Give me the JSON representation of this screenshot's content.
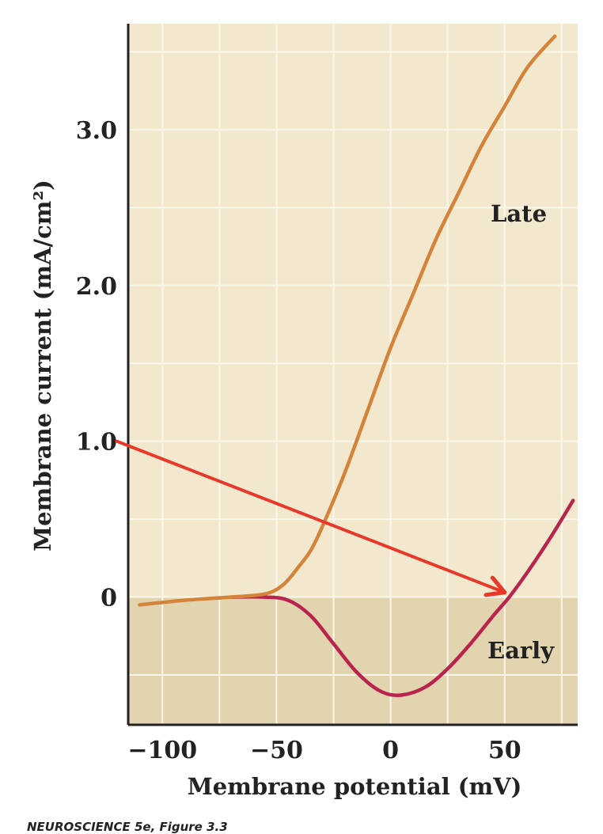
{
  "chart_data": {
    "type": "line",
    "xlabel": "Membrane potential (mV)",
    "ylabel": "Membrane current (mA/cm²)",
    "xlim": [
      -115,
      82
    ],
    "ylim": [
      -0.82,
      3.68
    ],
    "x_ticks": [
      -100,
      -50,
      0,
      50
    ],
    "x_tick_labels": [
      "−100",
      "−50",
      "0",
      "50"
    ],
    "y_ticks": [
      0,
      1.0,
      2.0,
      3.0
    ],
    "y_tick_labels": [
      "0",
      "1.0",
      "2.0",
      "3.0"
    ],
    "grid": true,
    "series": [
      {
        "name": "Late",
        "color": "#d4843a",
        "points": [
          [
            -110,
            -0.05
          ],
          [
            -90,
            -0.02
          ],
          [
            -70,
            0.0
          ],
          [
            -55,
            0.02
          ],
          [
            -47,
            0.08
          ],
          [
            -40,
            0.2
          ],
          [
            -35,
            0.3
          ],
          [
            -30,
            0.45
          ],
          [
            -20,
            0.8
          ],
          [
            -10,
            1.2
          ],
          [
            0,
            1.6
          ],
          [
            10,
            1.95
          ],
          [
            20,
            2.3
          ],
          [
            30,
            2.6
          ],
          [
            40,
            2.9
          ],
          [
            50,
            3.15
          ],
          [
            60,
            3.4
          ],
          [
            72,
            3.6
          ]
        ]
      },
      {
        "name": "Early",
        "color": "#b8244e",
        "points": [
          [
            -70,
            0.0
          ],
          [
            -55,
            0.0
          ],
          [
            -45,
            -0.02
          ],
          [
            -35,
            -0.12
          ],
          [
            -25,
            -0.3
          ],
          [
            -15,
            -0.48
          ],
          [
            -5,
            -0.6
          ],
          [
            4,
            -0.63
          ],
          [
            15,
            -0.58
          ],
          [
            25,
            -0.46
          ],
          [
            35,
            -0.3
          ],
          [
            45,
            -0.12
          ],
          [
            52,
            0.0
          ],
          [
            60,
            0.16
          ],
          [
            70,
            0.38
          ],
          [
            80,
            0.62
          ]
        ]
      }
    ],
    "annotation_arrow": {
      "color": "#e8382a",
      "from": [
        -120,
        1.0
      ],
      "to": [
        50,
        0.03
      ]
    }
  },
  "labels": {
    "late": "Late",
    "early": "Early"
  },
  "caption": "NEUROSCIENCE 5e, Figure 3.3",
  "colors": {
    "background_positive": "#f2e8cd",
    "background_negative": "#e1d4af",
    "grid": "#fbf6ea",
    "axis": "#222222"
  }
}
